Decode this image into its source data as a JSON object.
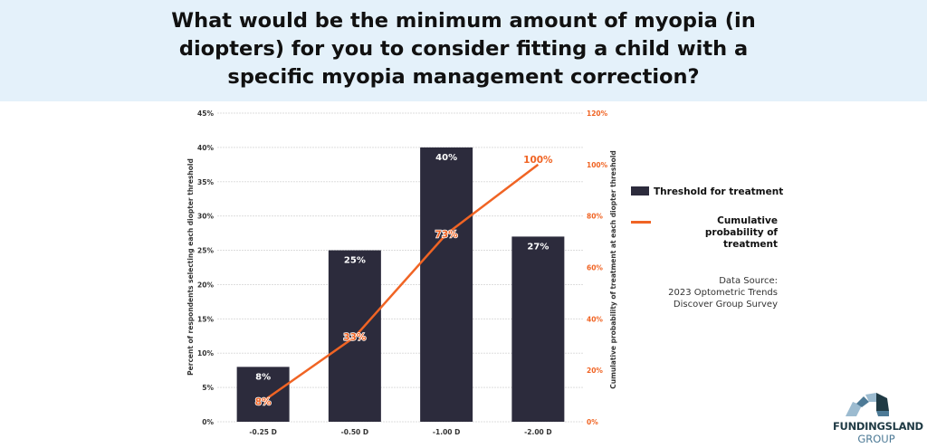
{
  "title": "What would be the minimum amount of myopia (in diopters) for you to consider fitting a child with a specific myopia management correction?",
  "chart_data": {
    "type": "bar+line",
    "categories": [
      "-0.25 D",
      "-0.50 D",
      "-1.00 D",
      "-2.00 D"
    ],
    "series": [
      {
        "name": "Threshold for treatment",
        "type": "bar",
        "axis": "left",
        "values": [
          8,
          25,
          40,
          27
        ],
        "labels": [
          "8%",
          "25%",
          "40%",
          "27%"
        ],
        "color": "#2c2b3c"
      },
      {
        "name": "Cumulative probability of treatment",
        "type": "line",
        "axis": "right",
        "values": [
          8,
          33,
          73,
          100
        ],
        "labels": [
          "8%",
          "33%",
          "73%",
          "100%"
        ],
        "color": "#f06424"
      }
    ],
    "ylabel": "Percent of respondents selecting each diopter threshold",
    "y2label": "Cumulative probability of treatment at each diopter threshold",
    "ylim": [
      0,
      45
    ],
    "y2lim": [
      0,
      120
    ],
    "yticks": [
      "0%",
      "5%",
      "10%",
      "15%",
      "20%",
      "25%",
      "30%",
      "35%",
      "40%",
      "45%"
    ],
    "y2ticks": [
      "0%",
      "20%",
      "40%",
      "60%",
      "80%",
      "100%",
      "120%"
    ],
    "grid": true,
    "legend_position": "right"
  },
  "source": {
    "line1": "Data Source:",
    "line2": "2023 Optometric Trends",
    "line3": "Discover Group Survey"
  },
  "logo": {
    "line1": "FUNDINGSLAND",
    "line2": "GROUP"
  }
}
